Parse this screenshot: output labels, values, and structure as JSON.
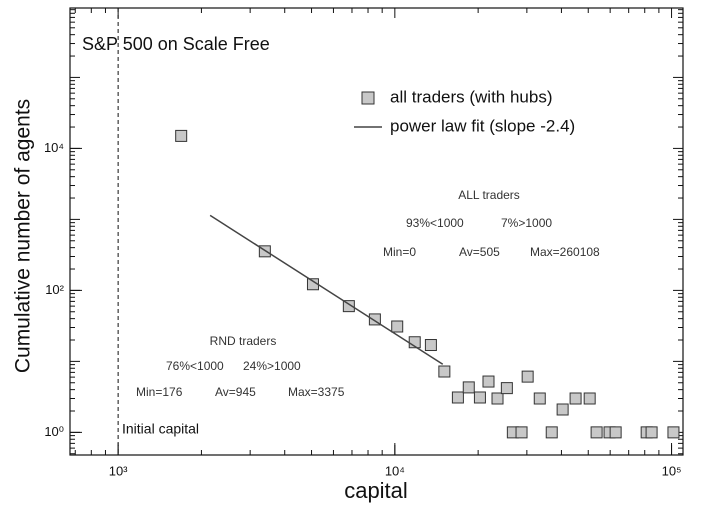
{
  "chart_data": {
    "type": "scatter",
    "title": "S&P 500 on Scale Free",
    "x_label": "capital",
    "y_label": "Cumulative number of agents",
    "log_x": true,
    "log_y": true,
    "xlim": [
      670,
      110000
    ],
    "ylim": [
      0.48,
      950000
    ],
    "xticks": [
      {
        "value": 1000,
        "label": "10³"
      },
      {
        "value": 10000,
        "label": "10⁴"
      },
      {
        "value": 100000,
        "label": "10⁵"
      }
    ],
    "yticks": [
      {
        "value": 1,
        "label": "10⁰"
      },
      {
        "value": 100,
        "label": "10²"
      },
      {
        "value": 10000,
        "label": "10⁴"
      }
    ],
    "legend_position": "upper right",
    "series": [
      {
        "name": "all traders (with hubs)",
        "kind": "marker",
        "color": "#c8c8c8",
        "x": [
          1690,
          3390,
          5060,
          6820,
          8470,
          10200,
          11800,
          13500,
          15100,
          16900,
          18500,
          20300,
          21800,
          23500,
          25400,
          26700,
          28700,
          30200,
          33400,
          36900,
          40400,
          45000,
          50600,
          53600,
          59700,
          62800,
          81300,
          84700,
          101600
        ],
        "values": [
          15000,
          355,
          122,
          60,
          39,
          31,
          18.6,
          17,
          7.2,
          3.1,
          4.3,
          3.1,
          5.2,
          3,
          4.2,
          1,
          1,
          6.1,
          3,
          1,
          2.1,
          3,
          3,
          1,
          1,
          1,
          1,
          1,
          1
        ]
      },
      {
        "name": "power law fit (slope -2.4)",
        "kind": "line",
        "color": "#444444",
        "x": [
          2150,
          14900
        ],
        "values": [
          1140,
          9.1
        ]
      }
    ],
    "vline": {
      "x": 1000,
      "label": "Initial capital"
    },
    "annotations": {
      "all": [
        "ALL traders",
        "93%<1000",
        "7%>1000",
        "Min=0",
        "Av=505",
        "Max=260108"
      ],
      "rnd": [
        "RND traders",
        "76%<1000",
        "24%>1000",
        "Min=176",
        "Av=945",
        "Max=3375"
      ]
    }
  }
}
